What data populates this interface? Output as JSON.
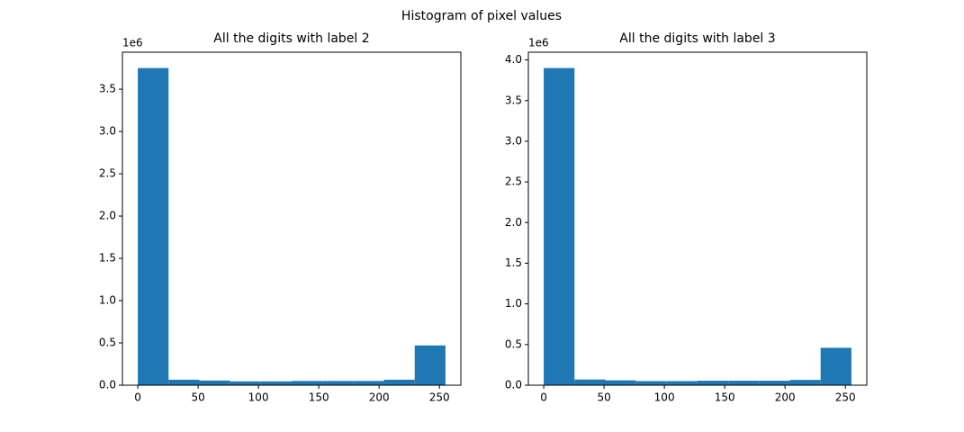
{
  "title": "Histogram of pixel values",
  "chart_data": [
    {
      "type": "histogram",
      "title": "All the digits with label 2",
      "color": "#1f77b4",
      "bins": [
        0,
        25.5,
        51,
        76.5,
        102,
        127.5,
        153,
        178.5,
        204,
        229.5,
        255
      ],
      "counts": [
        3750000,
        65000,
        55000,
        45000,
        45000,
        50000,
        50000,
        50000,
        65000,
        470000
      ],
      "xlim": [
        -12.75,
        267.75
      ],
      "xticks": [
        0,
        50,
        100,
        150,
        200,
        250
      ],
      "ylim": [
        0,
        3937500
      ],
      "y_offset_label": "1e6",
      "yticks": [
        {
          "value": 0,
          "label": "0.0"
        },
        {
          "value": 500000,
          "label": "0.5"
        },
        {
          "value": 1000000,
          "label": "1.0"
        },
        {
          "value": 1500000,
          "label": "1.5"
        },
        {
          "value": 2000000,
          "label": "2.0"
        },
        {
          "value": 2500000,
          "label": "2.5"
        },
        {
          "value": 3000000,
          "label": "3.0"
        },
        {
          "value": 3500000,
          "label": "3.5"
        }
      ]
    },
    {
      "type": "histogram",
      "title": "All the digits with label 3",
      "color": "#1f77b4",
      "bins": [
        0,
        25.5,
        51,
        76.5,
        102,
        127.5,
        153,
        178.5,
        204,
        229.5,
        255
      ],
      "counts": [
        3900000,
        70000,
        60000,
        50000,
        50000,
        55000,
        55000,
        55000,
        65000,
        460000
      ],
      "xlim": [
        -12.75,
        267.75
      ],
      "xticks": [
        0,
        50,
        100,
        150,
        200,
        250
      ],
      "ylim": [
        0,
        4095000
      ],
      "y_offset_label": "1e6",
      "yticks": [
        {
          "value": 0,
          "label": "0.0"
        },
        {
          "value": 500000,
          "label": "0.5"
        },
        {
          "value": 1000000,
          "label": "1.0"
        },
        {
          "value": 1500000,
          "label": "1.5"
        },
        {
          "value": 2000000,
          "label": "2.0"
        },
        {
          "value": 2500000,
          "label": "2.5"
        },
        {
          "value": 3000000,
          "label": "3.0"
        },
        {
          "value": 3500000,
          "label": "3.5"
        },
        {
          "value": 4000000,
          "label": "4.0"
        }
      ]
    }
  ]
}
